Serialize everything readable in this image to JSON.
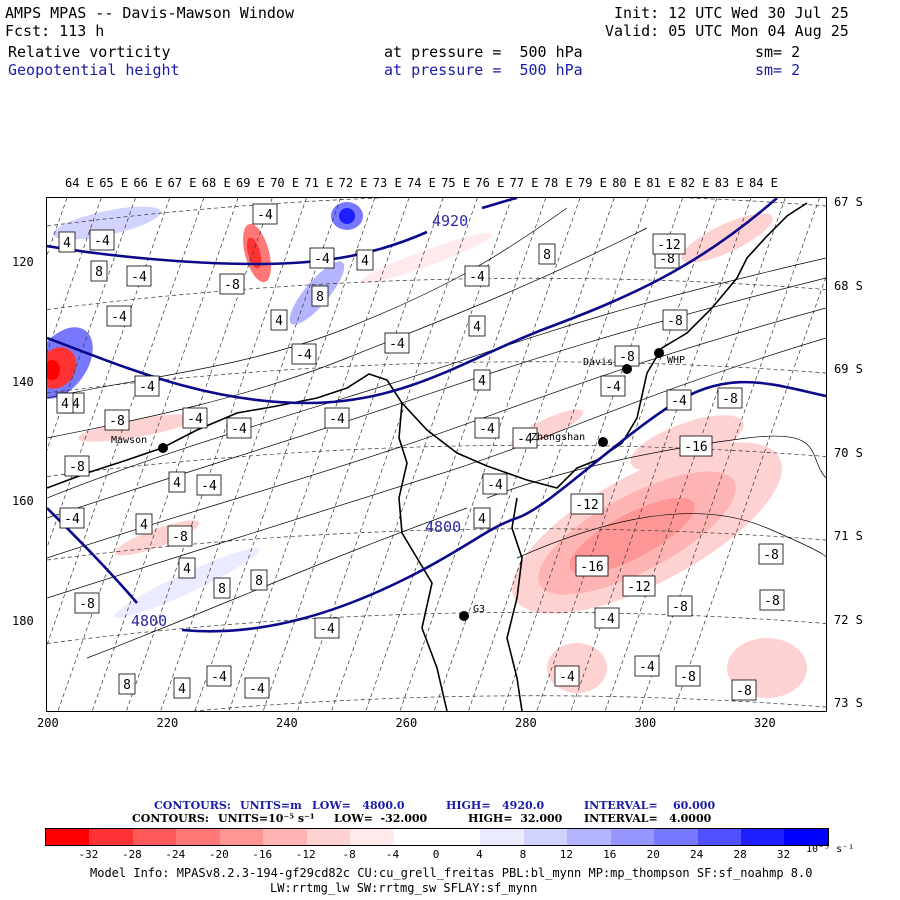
{
  "header": {
    "title": "AMPS MPAS -- Davis-Mawson Window",
    "fcst": "Fcst: 113 h",
    "init": "Init: 12 UTC Wed 30 Jul 25",
    "valid": "Valid: 05 UTC Mon 04 Aug 25",
    "field1": "Relative vorticity",
    "field1_level": "at pressure =  500 hPa",
    "field1_sm": "sm= 2",
    "field2": "Geopotential height",
    "field2_level": "at pressure =  500 hPa",
    "field2_sm": "sm= 2"
  },
  "axes": {
    "top_lon": [
      "64 E",
      "65 E",
      "66 E",
      "67 E",
      "68 E",
      "69 E",
      "70 E",
      "71 E",
      "72 E",
      "73 E",
      "74 E",
      "75 E",
      "76 E",
      "77 E",
      "78 E",
      "79 E",
      "80 E",
      "81 E",
      "82 E",
      "83 E",
      "84 E"
    ],
    "right_lat": [
      "67 S",
      "68 S",
      "69 S",
      "70 S",
      "71 S",
      "72 S",
      "73 S"
    ],
    "bottom_x": [
      "200",
      "220",
      "240",
      "260",
      "280",
      "300",
      "320"
    ],
    "left_y": [
      "120",
      "140",
      "160",
      "180"
    ]
  },
  "stations": [
    "Davis",
    "WHP",
    "Mawson",
    "Zhongshan",
    "G3"
  ],
  "contour_labels": {
    "height": [
      "4920",
      "4800",
      "4800"
    ],
    "vorticity": [
      "-4",
      "-8",
      "-12",
      "-16",
      "4",
      "8"
    ]
  },
  "contour_info": {
    "line1_contours": "CONTOURS:",
    "line1_units": "UNITS=m",
    "line1_low": "LOW=   4800.0",
    "line1_high": "HIGH=   4920.0",
    "line1_interval": "INTERVAL=    60.000",
    "line2_contours": "CONTOURS:",
    "line2_units": "UNITS=10⁻⁵ s⁻¹",
    "line2_low": "LOW=  -32.000",
    "line2_high": "HIGH=  32.000",
    "line2_interval": "INTERVAL=   4.0000"
  },
  "colorbar": {
    "labels": [
      "-32",
      "-28",
      "-24",
      "-20",
      "-16",
      "-12",
      "-8",
      "-4",
      "0",
      "4",
      "8",
      "12",
      "16",
      "20",
      "24",
      "28",
      "32"
    ],
    "unit": "10⁻⁵ s⁻¹",
    "colors": [
      "#ff0000",
      "#ff3333",
      "#ff5a5a",
      "#ff7878",
      "#ff9696",
      "#ffb4b4",
      "#ffd2d2",
      "#ffebeb",
      "#ffffff",
      "#ffffff",
      "#ebebff",
      "#d2d2ff",
      "#b4b4ff",
      "#9696ff",
      "#7878ff",
      "#5050ff",
      "#1e1eff",
      "#0000ff"
    ]
  },
  "model_info": {
    "line1": "Model Info: MPASv8.2.3-194-gf29cd82c CU:cu_grell_freitas PBL:bl_mynn MP:mp_thompson SF:sf_noahmp 8.0",
    "line2": "LW:rrtmg_lw SW:rrtmg_sw SFLAY:sf_mynn"
  }
}
